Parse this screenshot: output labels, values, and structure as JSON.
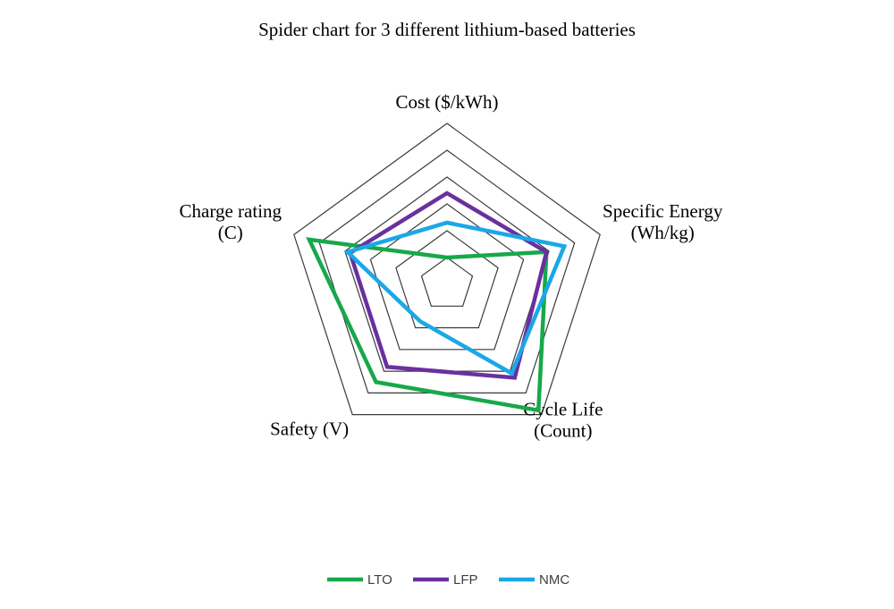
{
  "chart_data": {
    "type": "radar",
    "title": "Spider chart for 3 different lithium-based batteries",
    "axes": [
      {
        "key": "cost",
        "label_lines": [
          "Cost ($/kWh)"
        ]
      },
      {
        "key": "specific_energy",
        "label_lines": [
          "Specific Energy",
          "(Wh/kg)"
        ]
      },
      {
        "key": "cycle_life",
        "label_lines": [
          "Cycle Life",
          "(Count)"
        ]
      },
      {
        "key": "safety",
        "label_lines": [
          "Safety (V)"
        ]
      },
      {
        "key": "charge_rating",
        "label_lines": [
          "Charge rating",
          "(C)"
        ]
      }
    ],
    "range": [
      0,
      6
    ],
    "grid_levels": 6,
    "tick_labels_shown": false,
    "series": [
      {
        "name": "LTO",
        "color": "#17a84b",
        "values": [
          1,
          3.9,
          5.8,
          4.5,
          5.4
        ]
      },
      {
        "name": "LFP",
        "color": "#6a2fa0",
        "values": [
          3.4,
          3.9,
          4.3,
          3.8,
          3.8
        ]
      },
      {
        "name": "NMC",
        "color": "#1aa8e6",
        "values": [
          2.3,
          4.6,
          4.1,
          1.7,
          3.9
        ]
      }
    ],
    "legend_position": "bottom-center"
  }
}
